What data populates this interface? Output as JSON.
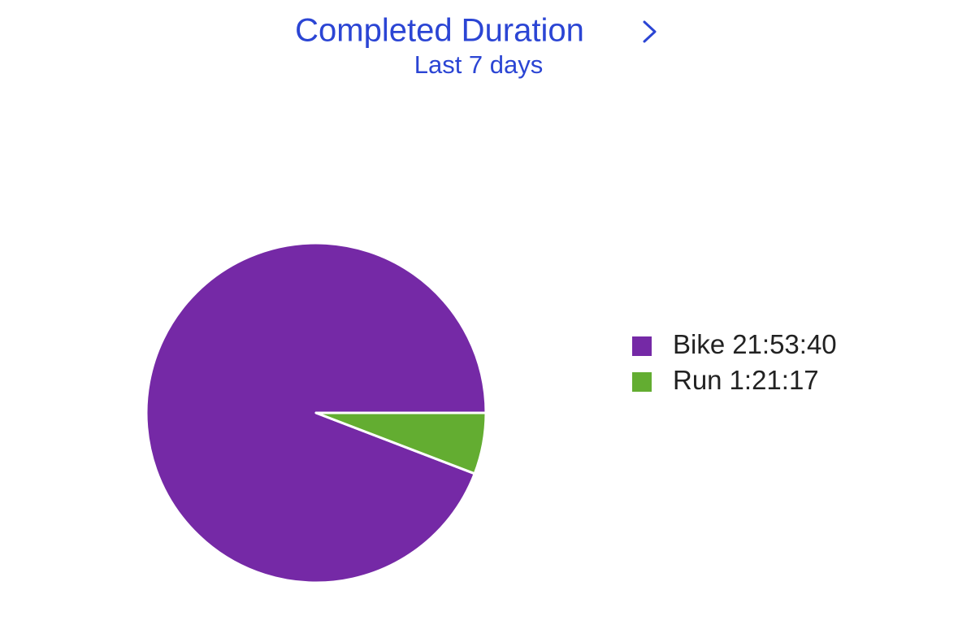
{
  "chart_data": {
    "type": "pie",
    "title": "Completed Duration",
    "subtitle": "Last 7 days",
    "categories": [
      "Bike",
      "Run"
    ],
    "values": [
      78820,
      4877
    ],
    "value_labels": [
      "21:53:40",
      "1:21:17"
    ],
    "colors": [
      "#7529a6",
      "#63ad31"
    ],
    "legend": "right"
  }
}
